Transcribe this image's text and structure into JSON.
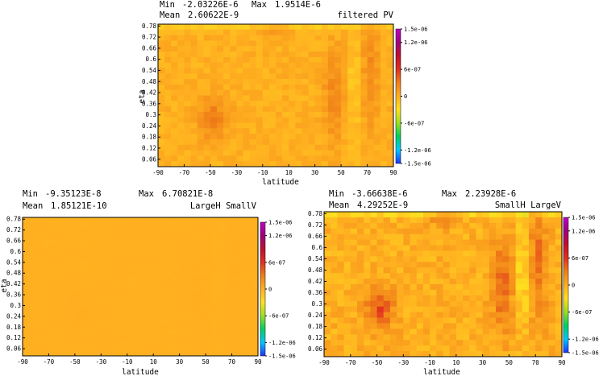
{
  "colors": {
    "background": "#ffffff",
    "field_base": "#f7a022",
    "frame": "#000000",
    "colorbar": [
      "#2030ff",
      "#00c8ff",
      "#00d060",
      "#9ae020",
      "#ffe020",
      "#ffb020",
      "#f08018",
      "#e03020",
      "#c01030",
      "#a00080",
      "#c000c0"
    ]
  },
  "chart_data": [
    {
      "type": "heatmap",
      "id": "filtered",
      "stats": {
        "min_label": "Min",
        "min": "-2.03226E-6",
        "max_label": "Max",
        "max": "1.9514E-6",
        "mean_label": "Mean",
        "mean": "2.60622E-9"
      },
      "title": "filtered PV",
      "xlabel": "latitude",
      "ylabel": "eta",
      "xlim": [
        -90,
        90
      ],
      "ylim": [
        0.02,
        0.79
      ],
      "x_ticks": [
        "-90",
        "-70",
        "-50",
        "-30",
        "-10",
        "10",
        "30",
        "50",
        "70",
        "90"
      ],
      "y_ticks": [
        "0.06",
        "0.12",
        "0.18",
        "0.24",
        "0.3",
        "0.36",
        "0.42",
        "0.48",
        "0.54",
        "0.6",
        "0.66",
        "0.72",
        "0.78"
      ],
      "colorbar_ticks": [
        "1.5e-06",
        "1.2e-06",
        "6e-07",
        "0",
        "-6e-07",
        "-1.2e-06",
        "-1.5e-06"
      ],
      "value_range": [
        -1.5e-06,
        1.5e-06
      ],
      "intensity": 1.0
    },
    {
      "type": "heatmap",
      "id": "largeh_smallv",
      "stats": {
        "min_label": "Min",
        "min": "-9.35123E-8",
        "max_label": "Max",
        "max": "6.70821E-8",
        "mean_label": "Mean",
        "mean": "1.85121E-10"
      },
      "title": "LargeH SmallV",
      "xlabel": "latitude",
      "ylabel": "eta",
      "xlim": [
        -90,
        90
      ],
      "ylim": [
        0.02,
        0.79
      ],
      "x_ticks": [
        "-90",
        "-70",
        "-50",
        "-30",
        "-10",
        "10",
        "30",
        "50",
        "70",
        "90"
      ],
      "y_ticks": [
        "0.06",
        "0.12",
        "0.18",
        "0.24",
        "0.3",
        "0.36",
        "0.42",
        "0.48",
        "0.54",
        "0.6",
        "0.66",
        "0.72",
        "0.78"
      ],
      "colorbar_ticks": [
        "1.5e-06",
        "1.2e-06",
        "6e-07",
        "0",
        "-6e-07",
        "-1.2e-06",
        "-1.5e-06"
      ],
      "value_range": [
        -1.5e-06,
        1.5e-06
      ],
      "intensity": 0.05
    },
    {
      "type": "heatmap",
      "id": "smallh_largev",
      "stats": {
        "min_label": "Min",
        "min": "-3.66638E-6",
        "max_label": "Max",
        "max": "2.23928E-6",
        "mean_label": "Mean",
        "mean": "4.29252E-9"
      },
      "title": "SmallH LargeV",
      "xlabel": "latitude",
      "ylabel": "",
      "xlim": [
        -90,
        90
      ],
      "ylim": [
        0.02,
        0.79
      ],
      "x_ticks": [
        "-90",
        "-70",
        "-50",
        "-30",
        "-10",
        "10",
        "30",
        "50",
        "70",
        "90"
      ],
      "y_ticks": [
        "0.06",
        "0.12",
        "0.18",
        "0.24",
        "0.3",
        "0.36",
        "0.42",
        "0.48",
        "0.54",
        "0.6",
        "0.66",
        "0.72",
        "0.78"
      ],
      "colorbar_ticks": [
        "1.5e-06",
        "1.2e-06",
        "6e-07",
        "0",
        "-6e-07",
        "-1.2e-06",
        "-1.5e-06"
      ],
      "value_range": [
        -1.5e-06,
        1.5e-06
      ],
      "intensity": 1.6
    }
  ]
}
